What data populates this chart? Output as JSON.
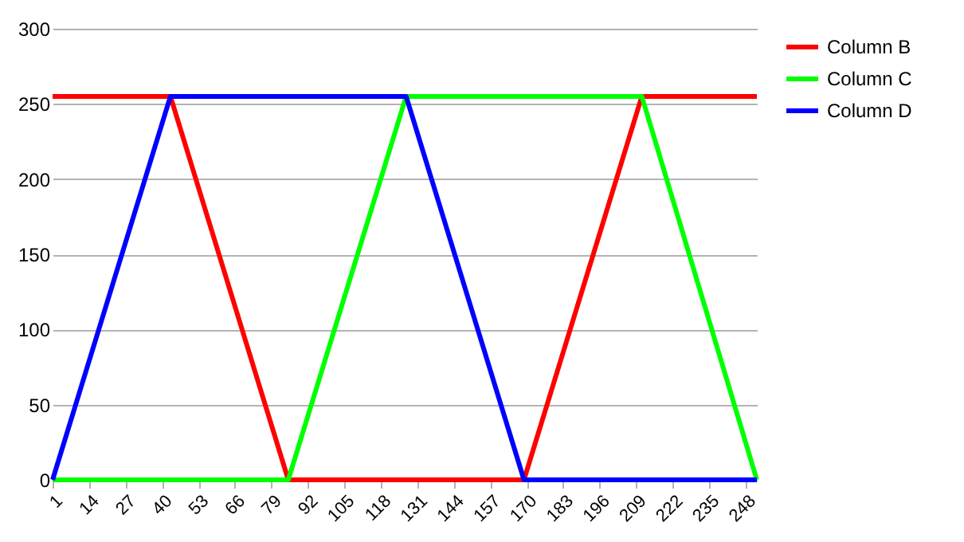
{
  "chart_data": {
    "type": "line",
    "x": [
      1,
      43,
      85,
      127,
      169,
      211,
      252
    ],
    "series": [
      {
        "name": "Column B",
        "color": "#ff0000",
        "values": [
          255,
          255,
          0,
          0,
          0,
          255,
          255
        ]
      },
      {
        "name": "Column C",
        "color": "#00ff00",
        "values": [
          0,
          0,
          0,
          255,
          255,
          255,
          0
        ]
      },
      {
        "name": "Column D",
        "color": "#0000ff",
        "values": [
          0,
          255,
          255,
          255,
          0,
          0,
          0
        ]
      }
    ],
    "xlim": [
      1,
      252
    ],
    "xticks": [
      1,
      14,
      27,
      40,
      53,
      66,
      79,
      92,
      105,
      118,
      131,
      144,
      157,
      170,
      183,
      196,
      209,
      222,
      235,
      248
    ],
    "ylim": [
      0,
      300
    ],
    "yticks": [
      0,
      50,
      100,
      150,
      200,
      250,
      300
    ],
    "grid": "y",
    "legend": "right"
  }
}
